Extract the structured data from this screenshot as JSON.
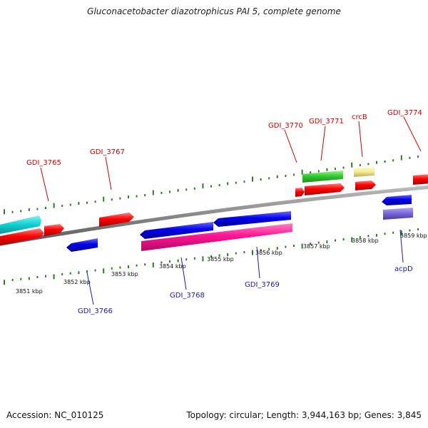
{
  "title": "Gluconacetobacter diazotrophicus PAI 5, complete genome",
  "footer": {
    "accession": "Accession: NC_010125",
    "summary": "Topology: circular; Length: 3,944,163 bp; Genes: 3,845"
  },
  "colors": {
    "backbone": "#888888",
    "tick": "#2e7d22",
    "label_top": "#cc0000",
    "label_bottom": "#1a1aaa"
  },
  "ruler": {
    "ticks": [
      "3851 kbp",
      "3852 kbp",
      "3853 kbp",
      "3854 kbp",
      "3855 kbp",
      "3856 kbp",
      "3857 kbp",
      "3858 kbp",
      "3859 kbp"
    ]
  },
  "genes_top": [
    {
      "label": "GDI_3765",
      "color": "#cc0000"
    },
    {
      "label": "GDI_3767",
      "color": "#cc0000"
    },
    {
      "label": "GDI_3770",
      "color": "#cc0000"
    },
    {
      "label": "GDI_3771",
      "color": "#cc0000"
    },
    {
      "label": "crcB",
      "color": "#cc0000"
    },
    {
      "label": "GDI_3774",
      "color": "#cc0000"
    }
  ],
  "genes_bottom": [
    {
      "label": "GDI_3766",
      "color": "#1a1aaa"
    },
    {
      "label": "GDI_3768",
      "color": "#1a1aaa"
    },
    {
      "label": "GDI_3769",
      "color": "#1a1aaa"
    },
    {
      "label": "acpD",
      "color": "#1a1aaa"
    }
  ]
}
